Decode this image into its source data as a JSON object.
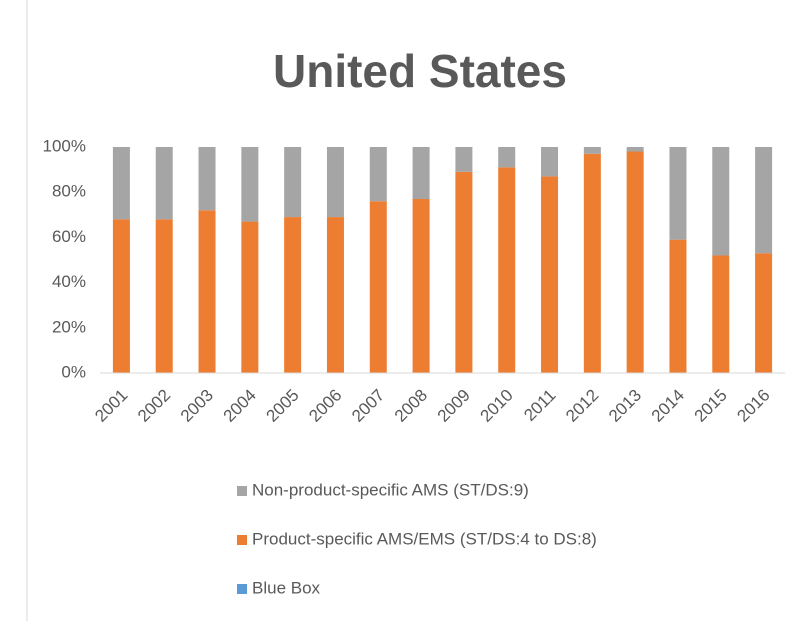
{
  "chart_data": {
    "type": "stacked-bar",
    "title": "United States",
    "categories": [
      "2001",
      "2002",
      "2003",
      "2004",
      "2005",
      "2006",
      "2007",
      "2008",
      "2009",
      "2010",
      "2011",
      "2012",
      "2013",
      "2014",
      "2015",
      "2016"
    ],
    "series": [
      {
        "name": "Non-product-specific AMS (ST/DS:9)",
        "color": "#a5a5a5",
        "values": [
          32,
          32,
          28,
          33,
          31,
          31,
          24,
          23,
          11,
          9,
          13,
          3,
          2,
          41,
          48,
          47
        ]
      },
      {
        "name": "Product-specific AMS/EMS (ST/DS:4 to DS:8)",
        "color": "#ed7d31",
        "values": [
          68,
          68,
          72,
          67,
          69,
          69,
          76,
          77,
          89,
          91,
          87,
          97,
          98,
          59,
          52,
          53
        ]
      },
      {
        "name": "Blue Box",
        "color": "#5b9bd5",
        "values": [
          0,
          0,
          0,
          0,
          0,
          0,
          0,
          0,
          0,
          0,
          0,
          0,
          0,
          0,
          0,
          0
        ]
      }
    ],
    "ylim": [
      0,
      100
    ],
    "yticks": [
      {
        "value": 0,
        "label": "0%"
      },
      {
        "value": 20,
        "label": "20%"
      },
      {
        "value": 40,
        "label": "40%"
      },
      {
        "value": 60,
        "label": "60%"
      },
      {
        "value": 80,
        "label": "80%"
      },
      {
        "value": 100,
        "label": "100%"
      }
    ],
    "grid": false,
    "legend": "bottom"
  }
}
